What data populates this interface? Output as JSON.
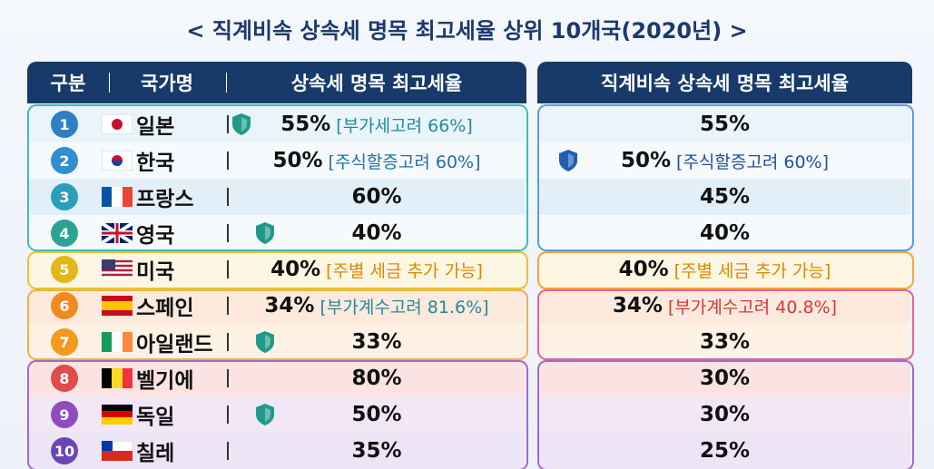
{
  "title": "< 직계비속 상속세 명목 최고세율 상위 10개국(2020년) >",
  "table": {
    "headers": [
      "구분",
      "국가명",
      "상속세 명목 최고세율"
    ],
    "right_header": "직계비속 상속세 명목 최고세율",
    "rows": [
      {
        "rank": "1",
        "country": "일본",
        "rate": "55%",
        "note": "[부가세고려 66%]",
        "right_rate": "55%"
      },
      {
        "rank": "2",
        "country": "한국",
        "rate": "50%",
        "note": "[주식할증고려 60%]",
        "right_rate": "50%",
        "right_note": "[주식할증고려 60%]"
      },
      {
        "rank": "3",
        "country": "프랑스",
        "rate": "60%",
        "right_rate": "45%"
      },
      {
        "rank": "4",
        "country": "영국",
        "rate": "40%",
        "right_rate": "40%"
      },
      {
        "rank": "5",
        "country": "미국",
        "rate": "40%",
        "note": "[주별 세금 추가 가능]",
        "right_rate": "40%",
        "right_note": "[주별 세금 추가 가능]"
      },
      {
        "rank": "6",
        "country": "스페인",
        "rate": "34%",
        "note": "[부가계수고려 81.6%]",
        "right_rate": "34%",
        "right_note": "[부가계수고려 40.8%]"
      },
      {
        "rank": "7",
        "country": "아일랜드",
        "rate": "33%",
        "right_rate": "33%"
      },
      {
        "rank": "8",
        "country": "벨기에",
        "rate": "80%",
        "right_rate": "30%"
      },
      {
        "rank": "9",
        "country": "독일",
        "rate": "50%",
        "right_rate": "30%"
      },
      {
        "rank": "10",
        "country": "칠레",
        "rate": "35%",
        "right_rate": "25%"
      }
    ]
  }
}
